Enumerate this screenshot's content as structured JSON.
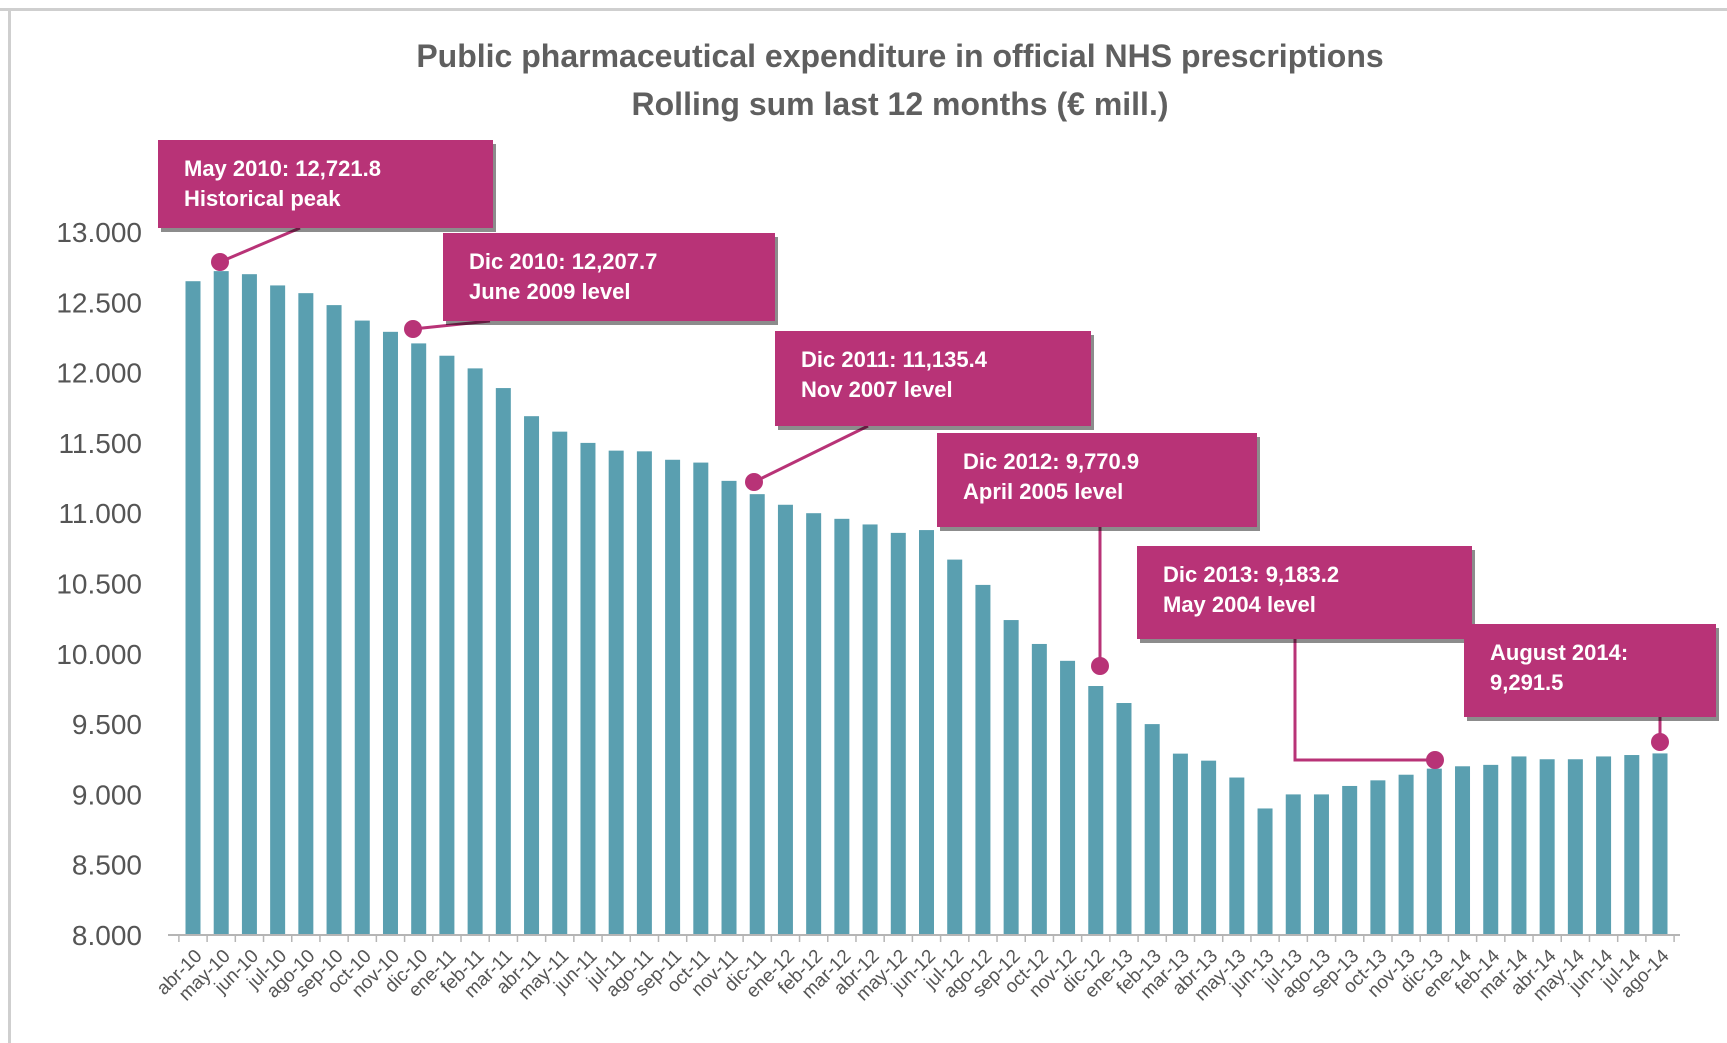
{
  "chart_data": {
    "type": "bar",
    "title": "Public pharmaceutical expenditure in official NHS prescriptions",
    "subtitle": "Rolling sum last 12 months (€ mill.)",
    "xlabel": "",
    "ylabel": "",
    "ylim": [
      8000,
      13000
    ],
    "yticks": [
      "8.000",
      "8.500",
      "9.000",
      "9.500",
      "10.000",
      "10.500",
      "11.000",
      "11.500",
      "12.000",
      "12.500",
      "13.000"
    ],
    "grid": false,
    "legend": "none",
    "bar_color": "#5a9fb0",
    "categories": [
      "abr-10",
      "may-10",
      "jun-10",
      "jul-10",
      "ago-10",
      "sep-10",
      "oct-10",
      "nov-10",
      "dic-10",
      "ene-11",
      "feb-11",
      "mar-11",
      "abr-11",
      "may-11",
      "jun-11",
      "jul-11",
      "ago-11",
      "sep-11",
      "oct-11",
      "nov-11",
      "dic-11",
      "ene-12",
      "feb-12",
      "mar-12",
      "abr-12",
      "may-12",
      "jun-12",
      "jul-12",
      "ago-12",
      "sep-12",
      "oct-12",
      "nov-12",
      "dic-12",
      "ene-13",
      "feb-13",
      "mar-13",
      "abr-13",
      "may-13",
      "jun-13",
      "jul-13",
      "ago-13",
      "sep-13",
      "oct-13",
      "nov-13",
      "dic-13",
      "ene-14",
      "feb-14",
      "mar-14",
      "abr-14",
      "may-14",
      "jun-14",
      "jul-14",
      "ago-14"
    ],
    "values": [
      12650,
      12721.8,
      12700,
      12620,
      12565,
      12480,
      12370,
      12290,
      12207.7,
      12120,
      12030,
      11890,
      11690,
      11580,
      11500,
      11445,
      11440,
      11380,
      11360,
      11230,
      11135.4,
      11060,
      11000,
      10960,
      10920,
      10860,
      10880,
      10670,
      10490,
      10240,
      10070,
      9950,
      9770.9,
      9650,
      9500,
      9290,
      9240,
      9120,
      8900,
      9000,
      9000,
      9060,
      9100,
      9140,
      9183.2,
      9200,
      9210,
      9270,
      9250,
      9250,
      9270,
      9280,
      9291.5
    ],
    "annotations": [
      {
        "lines": [
          "May 2010: 12,721.8",
          "Historical peak"
        ],
        "category": "may-10"
      },
      {
        "lines": [
          "Dic 2010: 12,207.7",
          "June 2009 level"
        ],
        "category": "dic-10"
      },
      {
        "lines": [
          "Dic 2011: 11,135.4",
          "Nov 2007 level"
        ],
        "category": "dic-11"
      },
      {
        "lines": [
          "Dic 2012: 9,770.9",
          "April 2005 level"
        ],
        "category": "dic-12"
      },
      {
        "lines": [
          "Dic 2013: 9,183.2",
          "May 2004 level"
        ],
        "category": "dic-13"
      },
      {
        "lines": [
          "August 2014:",
          "9,291.5"
        ],
        "category": "ago-14"
      }
    ],
    "callout_color": "#b83377"
  }
}
